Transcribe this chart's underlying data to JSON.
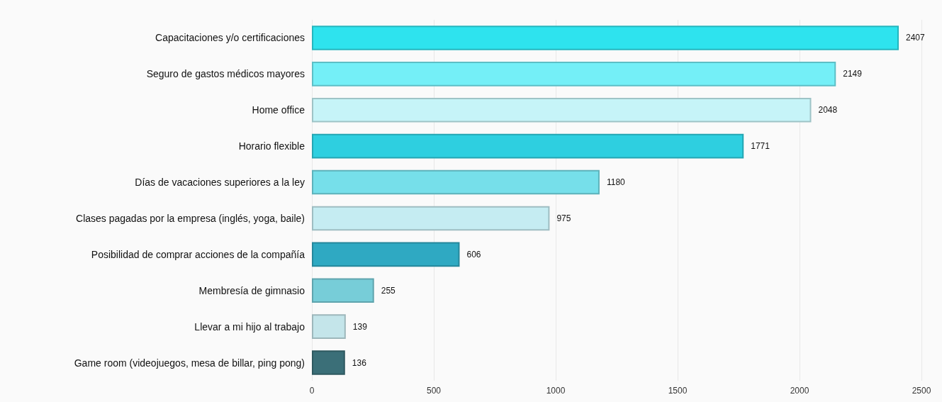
{
  "chart_data": {
    "type": "bar",
    "orientation": "horizontal",
    "categories": [
      "Capacitaciones y/o certificaciones",
      "Seguro de gastos médicos mayores",
      "Home office",
      "Horario flexible",
      "Días de vacaciones superiores a la ley",
      "Clases pagadas por la empresa (inglés, yoga, baile)",
      "Posibilidad de comprar acciones de la compañía",
      "Membresía de gimnasio",
      "Llevar a mi hijo al trabajo",
      "Game room (videojuegos, mesa de billar, ping pong)"
    ],
    "values": [
      2407,
      2149,
      2048,
      1771,
      1180,
      975,
      606,
      255,
      139,
      136
    ],
    "colors": [
      "#2ee3ee",
      "#74eff7",
      "#c6f4f8",
      "#2ecfe0",
      "#76dfea",
      "#c5ecf2",
      "#2fa9c2",
      "#77cdd8",
      "#c4e5ea",
      "#3b6f78"
    ],
    "xlim": [
      0,
      2500
    ],
    "xticks": [
      0,
      500,
      1000,
      1500,
      2000,
      2500
    ],
    "grid": "x",
    "data_labels": true
  }
}
